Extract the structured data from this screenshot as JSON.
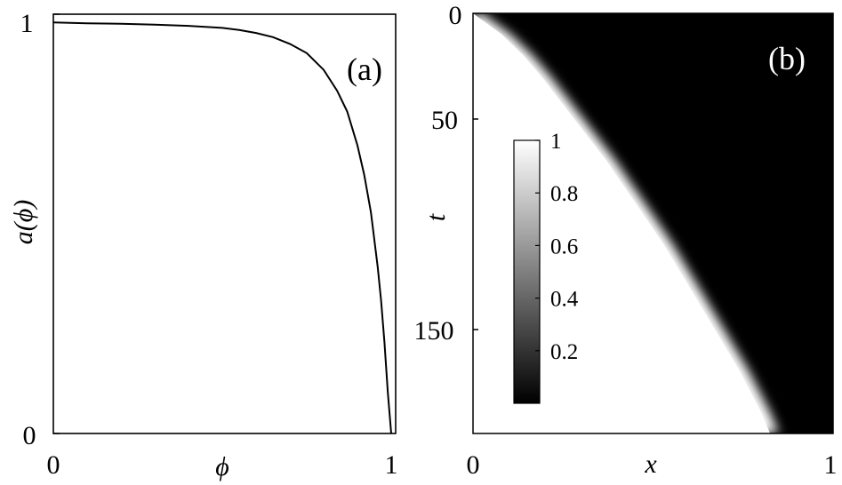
{
  "chart_data": [
    {
      "type": "line",
      "panel_label": "(a)",
      "xlabel": "ϕ",
      "ylabel": "a(ϕ)",
      "xlim": [
        0,
        1
      ],
      "ylim": [
        0,
        1
      ],
      "x_ticks": [
        "0",
        "1"
      ],
      "y_ticks": [
        "0",
        "1"
      ],
      "series": [
        {
          "x": [
            0,
            0.1,
            0.2,
            0.3,
            0.4,
            0.5,
            0.55,
            0.6,
            0.65,
            0.7,
            0.75,
            0.8,
            0.84,
            0.87,
            0.9,
            0.92,
            0.94,
            0.96,
            0.97,
            0.98,
            0.99,
            1.0
          ],
          "y": [
            0.993,
            0.991,
            0.99,
            0.988,
            0.985,
            0.98,
            0.975,
            0.968,
            0.958,
            0.942,
            0.92,
            0.88,
            0.83,
            0.78,
            0.7,
            0.63,
            0.54,
            0.41,
            0.33,
            0.23,
            0.11,
            0.0
          ]
        }
      ]
    },
    {
      "type": "heatmap",
      "panel_label": "(b)",
      "xlabel": "x",
      "ylabel": "t",
      "xlim": [
        0,
        1
      ],
      "ylim": [
        200,
        0
      ],
      "x_ticks": [
        "0",
        "1"
      ],
      "y_ticks": [
        "0",
        "50",
        "150"
      ],
      "front": {
        "t": [
          0,
          10,
          20,
          30,
          40,
          50,
          60,
          70,
          80,
          90,
          100,
          110,
          120,
          130,
          140,
          150,
          160,
          170,
          180,
          190,
          200
        ],
        "x": [
          0,
          0.08,
          0.14,
          0.19,
          0.235,
          0.28,
          0.325,
          0.37,
          0.41,
          0.45,
          0.49,
          0.53,
          0.565,
          0.6,
          0.635,
          0.67,
          0.705,
          0.74,
          0.77,
          0.8,
          0.825
        ]
      },
      "colorbar": {
        "ticks": [
          "1",
          "0.8",
          "0.6",
          "0.4",
          "0.2"
        ],
        "tick_values": [
          1,
          0.8,
          0.6,
          0.4,
          0.2
        ],
        "range": [
          0,
          1
        ],
        "colormap": "gray"
      }
    }
  ]
}
